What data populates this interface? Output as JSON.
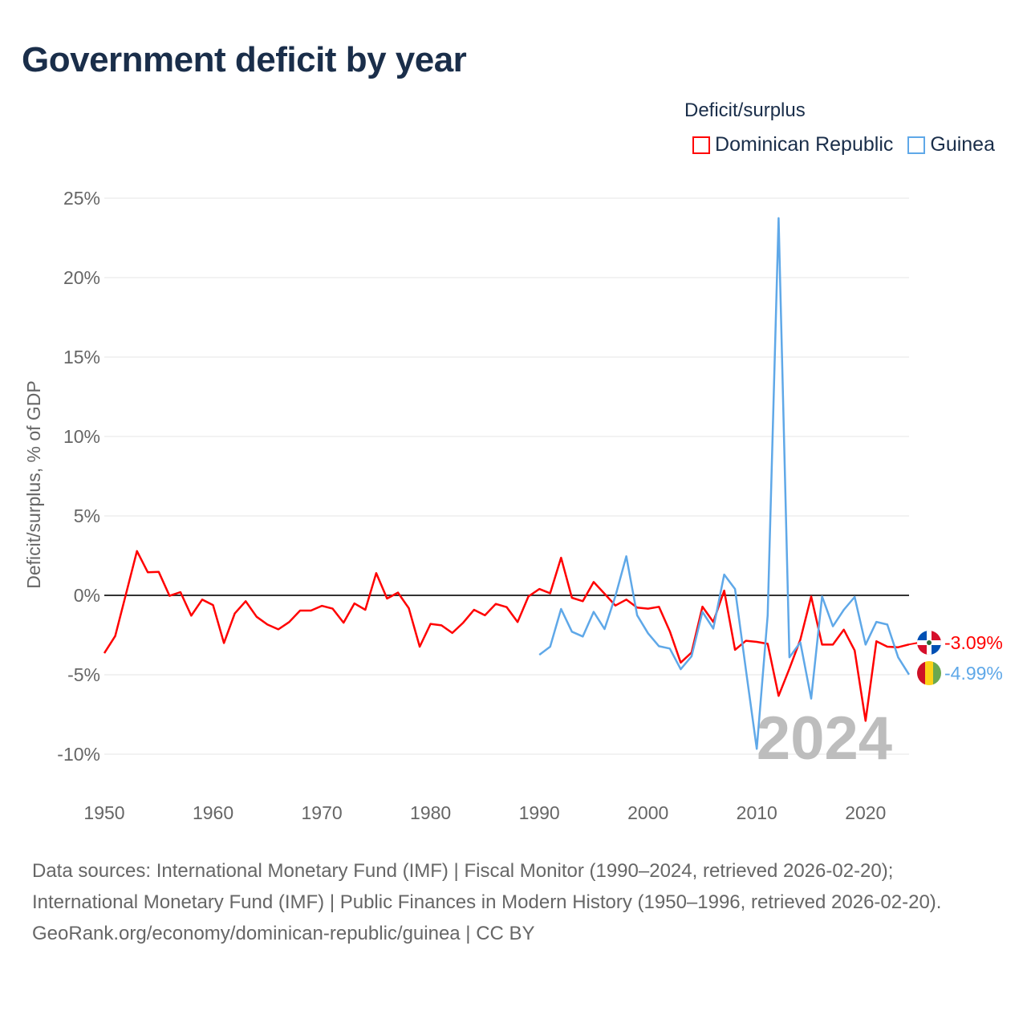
{
  "title": "Government deficit by year",
  "legend": {
    "title": "Deficit/surplus"
  },
  "footer": {
    "sources": "Data sources: International Monetary Fund (IMF) | Fiscal Monitor (1990–2024, retrieved 2026-02-20); International Monetary Fund (IMF) | Public Finances in Modern History (1950–1996, retrieved 2026-02-20).",
    "credit": "GeoRank.org/economy/dominican-republic/guinea | CC BY"
  },
  "chart_data": {
    "type": "line",
    "title": "Government deficit by year",
    "xlabel": "",
    "ylabel": "Deficit/surplus, % of GDP",
    "xlim": [
      1950,
      2024
    ],
    "ylim": [
      -10,
      25
    ],
    "x_ticks": [
      1950,
      1960,
      1970,
      1980,
      1990,
      2000,
      2010,
      2020
    ],
    "y_ticks": [
      {
        "value": 25,
        "label": "25%"
      },
      {
        "value": 20,
        "label": "20%"
      },
      {
        "value": 15,
        "label": "15%"
      },
      {
        "value": 10,
        "label": "10%"
      },
      {
        "value": 5,
        "label": "5%"
      },
      {
        "value": 0,
        "label": "0%"
      },
      {
        "value": -5,
        "label": "-5%"
      },
      {
        "value": -10,
        "label": "-10%"
      }
    ],
    "grid": true,
    "legend_position": "top-right",
    "year_watermark": "2024",
    "series": [
      {
        "name": "Dominican Republic",
        "color": "#ff0000",
        "start_year": 1950,
        "end_label": "-3.09%",
        "values": [
          -3.64,
          -2.56,
          0.1,
          2.79,
          1.45,
          1.48,
          -0.03,
          0.2,
          -1.28,
          -0.27,
          -0.61,
          -3.0,
          -1.14,
          -0.37,
          -1.35,
          -1.84,
          -2.14,
          -1.68,
          -0.96,
          -0.96,
          -0.66,
          -0.84,
          -1.72,
          -0.51,
          -0.91,
          1.4,
          -0.2,
          0.17,
          -0.81,
          -3.23,
          -1.8,
          -1.89,
          -2.37,
          -1.72,
          -0.91,
          -1.26,
          -0.54,
          -0.74,
          -1.68,
          -0.07,
          0.4,
          0.13,
          2.37,
          -0.15,
          -0.37,
          0.84,
          0.1,
          -0.64,
          -0.27,
          -0.77,
          -0.84,
          -0.72,
          -2.26,
          -4.23,
          -3.6,
          -0.71,
          -1.67,
          0.3,
          -3.43,
          -2.86,
          -2.93,
          -3.05,
          -6.33,
          -4.61,
          -2.79,
          -0.07,
          -3.1,
          -3.1,
          -2.16,
          -3.47,
          -7.9,
          -2.89,
          -3.23,
          -3.27,
          -3.09
        ]
      },
      {
        "name": "Guinea",
        "color": "#5fa8e8",
        "start_year": 1990,
        "end_label": "-4.99%",
        "values": [
          -3.74,
          -3.23,
          -0.86,
          -2.29,
          -2.59,
          -1.04,
          -2.12,
          -0.05,
          2.46,
          -1.25,
          -2.39,
          -3.2,
          -3.35,
          -4.65,
          -3.84,
          -1.04,
          -2.09,
          1.31,
          0.4,
          -4.7,
          -9.66,
          -1.25,
          23.74,
          -3.9,
          -2.96,
          -6.5,
          -0.07,
          -1.95,
          -0.91,
          -0.1,
          -3.1,
          -1.67,
          -1.84,
          -3.9,
          -4.99
        ]
      }
    ]
  }
}
